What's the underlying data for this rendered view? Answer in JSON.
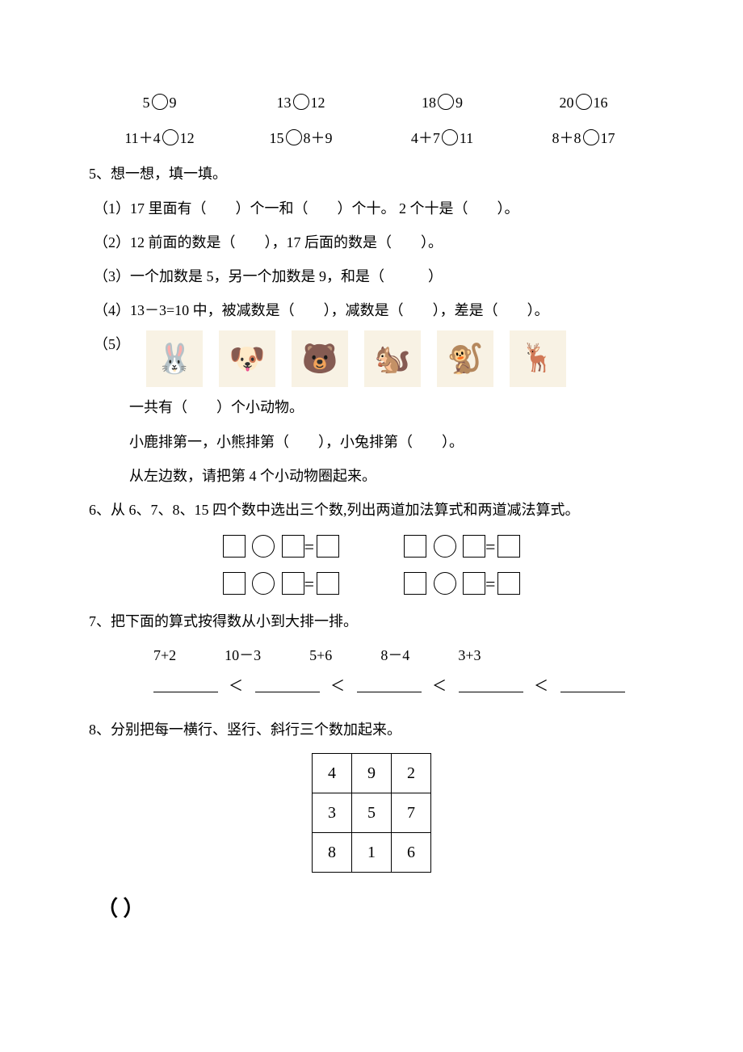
{
  "compare_rows": [
    [
      "5◯9",
      "13◯12",
      "18◯9",
      "20◯16"
    ],
    [
      "11＋4◯12",
      "15◯8＋9",
      "4＋7◯11",
      "8＋8◯17"
    ]
  ],
  "q5": {
    "title": "5、想一想，填一填。",
    "items": [
      "（1）17 里面有（　　）个一和（　　）个十。 2 个十是（　　）。",
      "（2）12 前面的数是（　　），17 后面的数是（　　）。",
      "（3）一个加数是 5，另一个加数是 9，和是（　　　）",
      "（4）13－3=10 中，被减数是（　　），减数是（　　），差是（　　）。"
    ],
    "five_label": "（5）",
    "animals": [
      {
        "name": "rabbit",
        "emoji": "🐰"
      },
      {
        "name": "dog",
        "emoji": "🐶"
      },
      {
        "name": "bear",
        "emoji": "🐻"
      },
      {
        "name": "squirrel",
        "emoji": "🐿️"
      },
      {
        "name": "monkey",
        "emoji": "🐒"
      },
      {
        "name": "deer",
        "emoji": "🦌"
      }
    ],
    "five_lines": [
      "一共有（　　）个小动物。",
      "小鹿排第一，小熊排第（　　），小兔排第（　　）。",
      "从左边数，请把第 4 个小动物圈起来。"
    ]
  },
  "q6": {
    "title": "6、从 6、7、8、15 四个数中选出三个数,列出两道加法算式和两道减法算式。"
  },
  "q7": {
    "title": "7、把下面的算式按得数从小到大排一排。",
    "exprs": [
      "7+2",
      "10－3",
      "5+6",
      "8－4",
      "3+3"
    ]
  },
  "q8": {
    "title": "8、分别把每一横行、竖行、斜行三个数加起来。",
    "grid": [
      [
        "4",
        "9",
        "2"
      ],
      [
        "3",
        "5",
        "7"
      ],
      [
        "8",
        "1",
        "6"
      ]
    ]
  },
  "bottom_paren": "（  ）"
}
